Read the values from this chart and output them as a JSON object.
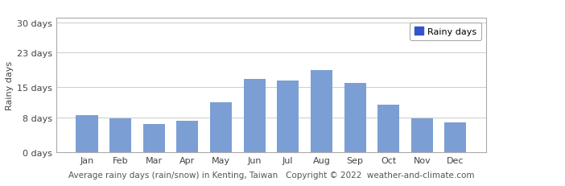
{
  "months": [
    "Jan",
    "Feb",
    "Mar",
    "Apr",
    "May",
    "Jun",
    "Jul",
    "Aug",
    "Sep",
    "Oct",
    "Nov",
    "Dec"
  ],
  "values": [
    8.5,
    7.9,
    6.5,
    7.2,
    11.5,
    17.0,
    16.5,
    19.0,
    16.0,
    11.0,
    7.9,
    7.0
  ],
  "bar_color": "#7B9FD4",
  "legend_color": "#3355CC",
  "ylabel": "Rainy days",
  "yticks": [
    0,
    8,
    15,
    23,
    30
  ],
  "ytick_labels": [
    "0 days",
    "8 days",
    "15 days",
    "23 days",
    "30 days"
  ],
  "ylim": [
    0,
    31
  ],
  "title": "Average rainy days (rain/snow) in Kenting, Taiwan",
  "copyright": "Copyright © 2022  weather-and-climate.com",
  "legend_label": "Rainy days",
  "background_color": "#ffffff",
  "grid_color": "#cccccc",
  "title_fontsize": 8,
  "tick_fontsize": 8,
  "ylabel_fontsize": 8
}
